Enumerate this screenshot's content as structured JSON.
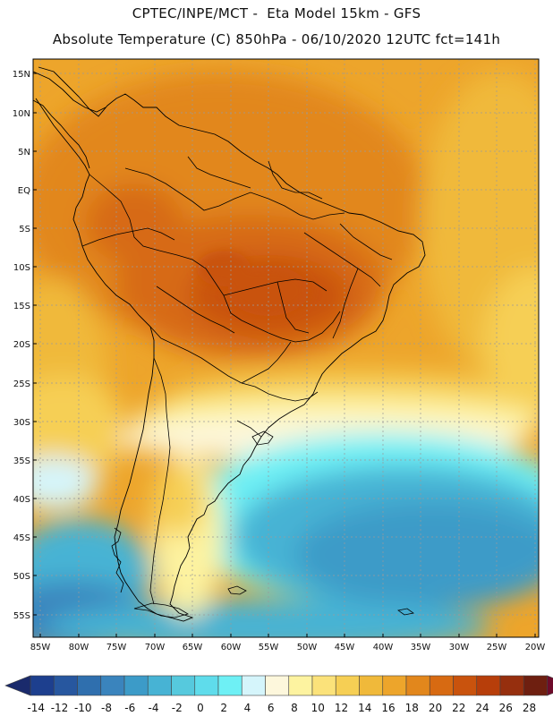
{
  "header": {
    "line1": "CPTEC/INPE/MCT -  Eta Model 15km - GFS",
    "line2": "Absolute Temperature (C) 850hPa - 06/10/2020 12UTC fct=141h"
  },
  "map": {
    "lat_labels": [
      "15N",
      "10N",
      "5N",
      "EQ",
      "5S",
      "10S",
      "15S",
      "20S",
      "25S",
      "30S",
      "35S",
      "40S",
      "45S",
      "50S",
      "55S"
    ],
    "lon_labels": [
      "85W",
      "80W",
      "75W",
      "70W",
      "65W",
      "60W",
      "55W",
      "50W",
      "45W",
      "40W",
      "35W",
      "30W",
      "25W",
      "20W"
    ],
    "lon_range": [
      -85,
      -20
    ],
    "lat_range": [
      -57,
      16
    ]
  },
  "colorbar": {
    "labels": [
      "-14",
      "-12",
      "-10",
      "-8",
      "-6",
      "-4",
      "-2",
      "0",
      "2",
      "4",
      "6",
      "8",
      "10",
      "12",
      "14",
      "16",
      "18",
      "20",
      "22",
      "24",
      "26",
      "28"
    ],
    "colors": [
      "#1d3f8e",
      "#27579f",
      "#2f6fae",
      "#3a84bd",
      "#3c9bc8",
      "#47b3d4",
      "#56c9dd",
      "#5fdceb",
      "#6ef0f5",
      "#d5f5fb",
      "#fdf7dc",
      "#fdf3a0",
      "#fbe27a",
      "#f6cf54",
      "#f0b93a",
      "#eda52b",
      "#e2871c",
      "#d76a12",
      "#c9530d",
      "#b73e0a",
      "#962f0e",
      "#6e1f10"
    ],
    "left_arrow_color": "#1a2a6c",
    "right_arrow_color": "#6e0b2a"
  }
}
